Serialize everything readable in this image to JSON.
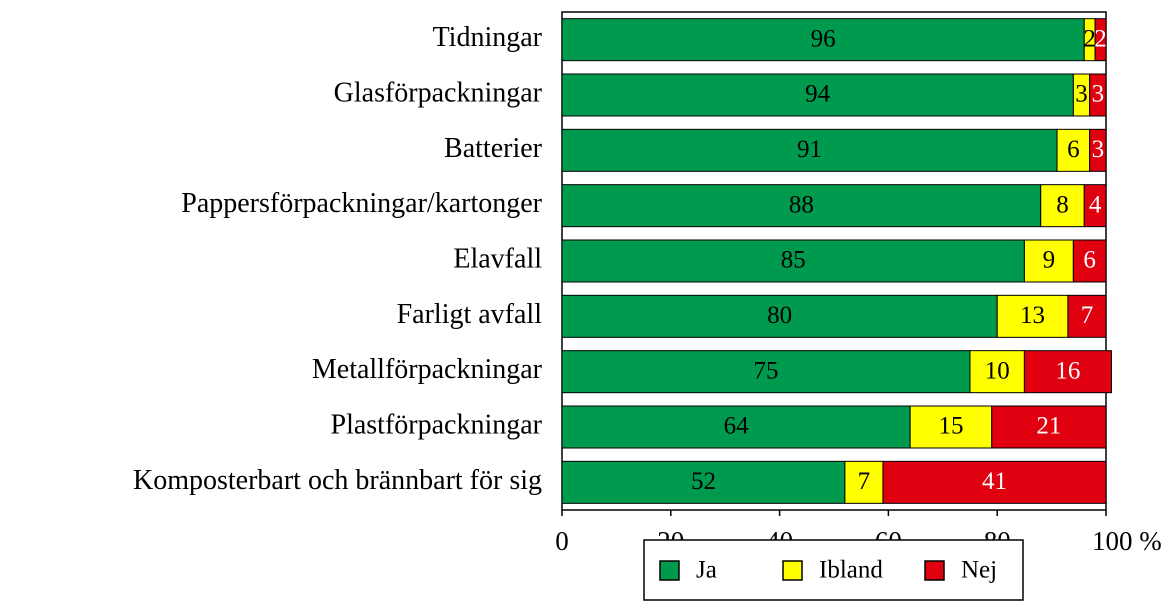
{
  "chart_data": {
    "type": "bar",
    "orientation": "horizontal",
    "stacked": true,
    "categories": [
      "Tidningar",
      "Glasförpackningar",
      "Batterier",
      "Pappersförpackningar/kartonger",
      "Elavfall",
      "Farligt avfall",
      "Metallförpackningar",
      "Plastförpackningar",
      "Komposterbart och brännbart för sig"
    ],
    "series": [
      {
        "name": "Ja",
        "color": "#009a4e",
        "values": [
          96,
          94,
          91,
          88,
          85,
          80,
          75,
          64,
          52
        ]
      },
      {
        "name": "Ibland",
        "color": "#ffff00",
        "values": [
          2,
          3,
          6,
          8,
          9,
          13,
          10,
          15,
          7
        ]
      },
      {
        "name": "Nej",
        "color": "#e00010",
        "values": [
          2,
          3,
          3,
          4,
          6,
          7,
          16,
          21,
          41
        ]
      }
    ],
    "xlim": [
      0,
      100
    ],
    "xticks": [
      0,
      20,
      40,
      60,
      80,
      {
        "value": 100,
        "label": "100 %"
      }
    ],
    "legend": "bottom"
  }
}
